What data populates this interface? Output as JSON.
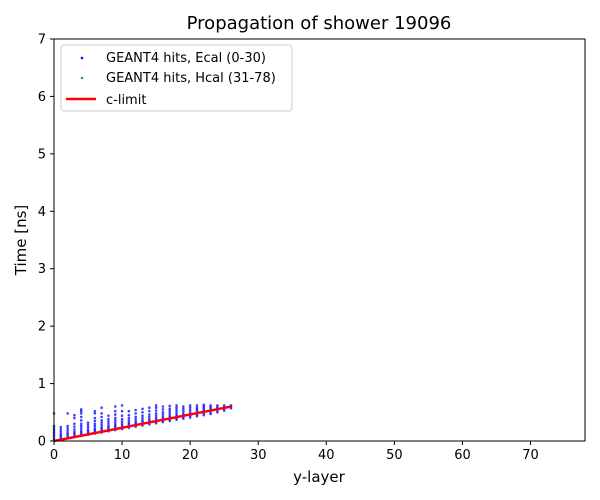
{
  "chart_data": {
    "type": "scatter",
    "title": "Propagation of shower 19096",
    "xlabel": "y-layer",
    "ylabel": "Time [ns]",
    "xlim": [
      0,
      78
    ],
    "ylim": [
      0,
      7
    ],
    "xticks": [
      "0",
      "10",
      "20",
      "30",
      "40",
      "50",
      "60",
      "70"
    ],
    "yticks": [
      "0",
      "1",
      "2",
      "3",
      "4",
      "5",
      "6",
      "7"
    ],
    "grid": false,
    "legend_position": "upper-left",
    "series": [
      {
        "name": "GEANT4 hits, Ecal (0-30)",
        "kind": "scatter",
        "color": "#0000ff",
        "columns": [
          {
            "x": 0,
            "y": [
              0.02,
              0.06,
              0.1,
              0.14,
              0.18,
              0.22,
              0.26,
              0.48
            ]
          },
          {
            "x": 1,
            "y": [
              0.03,
              0.06,
              0.09,
              0.12,
              0.16,
              0.2,
              0.24
            ]
          },
          {
            "x": 2,
            "y": [
              0.05,
              0.08,
              0.11,
              0.14,
              0.18,
              0.22,
              0.26,
              0.48
            ]
          },
          {
            "x": 3,
            "y": [
              0.07,
              0.1,
              0.13,
              0.16,
              0.2,
              0.25,
              0.3,
              0.4,
              0.45
            ]
          },
          {
            "x": 4,
            "y": [
              0.09,
              0.12,
              0.15,
              0.18,
              0.22,
              0.26,
              0.3,
              0.36,
              0.42,
              0.48,
              0.52,
              0.55
            ]
          },
          {
            "x": 5,
            "y": [
              0.11,
              0.14,
              0.17,
              0.2,
              0.24,
              0.28,
              0.32
            ]
          },
          {
            "x": 6,
            "y": [
              0.13,
              0.16,
              0.19,
              0.22,
              0.26,
              0.3,
              0.35,
              0.4,
              0.48,
              0.52
            ]
          },
          {
            "x": 7,
            "y": [
              0.15,
              0.18,
              0.21,
              0.24,
              0.28,
              0.32,
              0.36,
              0.42,
              0.48,
              0.58
            ]
          },
          {
            "x": 8,
            "y": [
              0.17,
              0.2,
              0.23,
              0.26,
              0.3,
              0.34,
              0.38,
              0.44
            ]
          },
          {
            "x": 9,
            "y": [
              0.19,
              0.22,
              0.25,
              0.28,
              0.32,
              0.36,
              0.4,
              0.46,
              0.52,
              0.6
            ]
          },
          {
            "x": 10,
            "y": [
              0.21,
              0.24,
              0.27,
              0.3,
              0.34,
              0.38,
              0.44,
              0.52,
              0.62
            ]
          },
          {
            "x": 11,
            "y": [
              0.23,
              0.26,
              0.29,
              0.32,
              0.36,
              0.4,
              0.45,
              0.52
            ]
          },
          {
            "x": 12,
            "y": [
              0.25,
              0.28,
              0.31,
              0.34,
              0.38,
              0.42,
              0.48,
              0.54
            ]
          },
          {
            "x": 13,
            "y": [
              0.27,
              0.3,
              0.33,
              0.36,
              0.4,
              0.44,
              0.5,
              0.56
            ]
          },
          {
            "x": 14,
            "y": [
              0.29,
              0.32,
              0.35,
              0.38,
              0.42,
              0.46,
              0.52,
              0.58
            ]
          },
          {
            "x": 15,
            "y": [
              0.31,
              0.34,
              0.37,
              0.4,
              0.44,
              0.48,
              0.53,
              0.58,
              0.62
            ]
          },
          {
            "x": 16,
            "y": [
              0.33,
              0.36,
              0.39,
              0.42,
              0.46,
              0.5,
              0.55,
              0.6
            ]
          },
          {
            "x": 17,
            "y": [
              0.35,
              0.38,
              0.41,
              0.44,
              0.48,
              0.52,
              0.56,
              0.61
            ]
          },
          {
            "x": 18,
            "y": [
              0.37,
              0.4,
              0.43,
              0.46,
              0.5,
              0.54,
              0.58,
              0.62
            ]
          },
          {
            "x": 19,
            "y": [
              0.39,
              0.42,
              0.45,
              0.48,
              0.52,
              0.56,
              0.6
            ]
          },
          {
            "x": 20,
            "y": [
              0.41,
              0.44,
              0.47,
              0.5,
              0.54,
              0.58,
              0.62
            ]
          },
          {
            "x": 21,
            "y": [
              0.43,
              0.46,
              0.49,
              0.52,
              0.55,
              0.58,
              0.62
            ]
          },
          {
            "x": 22,
            "y": [
              0.45,
              0.48,
              0.51,
              0.54,
              0.57,
              0.6,
              0.63
            ]
          },
          {
            "x": 23,
            "y": [
              0.47,
              0.5,
              0.53,
              0.56,
              0.59,
              0.62
            ]
          },
          {
            "x": 24,
            "y": [
              0.5,
              0.53,
              0.56,
              0.59,
              0.62
            ]
          },
          {
            "x": 25,
            "y": [
              0.53,
              0.56,
              0.59,
              0.62
            ]
          },
          {
            "x": 26,
            "y": [
              0.57,
              0.6,
              0.62
            ]
          }
        ]
      },
      {
        "name": "GEANT4 hits, Hcal (31-78)",
        "kind": "scatter",
        "color": "#2ca02c",
        "columns": []
      },
      {
        "name": "c-limit",
        "kind": "line",
        "color": "#ff0000",
        "x": [
          0,
          26
        ],
        "y": [
          0.0,
          0.6
        ]
      }
    ]
  }
}
